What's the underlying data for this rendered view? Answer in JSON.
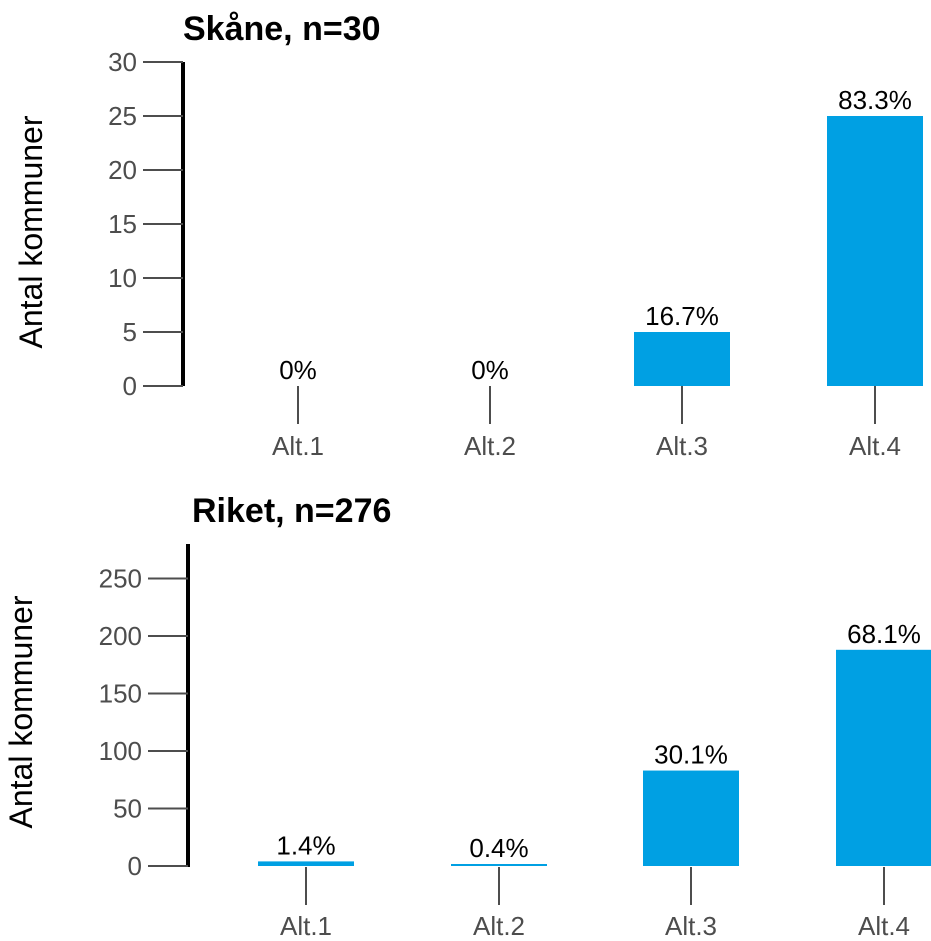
{
  "chart_data": [
    {
      "type": "bar",
      "title": "Skåne, n=30",
      "ylabel": "Antal kommuner",
      "xlabel": "",
      "categories": [
        "Alt.1",
        "Alt.2",
        "Alt.3",
        "Alt.4"
      ],
      "values": [
        0,
        0,
        5,
        25
      ],
      "data_labels": [
        "0%",
        "0%",
        "16.7%",
        "83.3%"
      ],
      "ylim": [
        0,
        30
      ],
      "yticks": [
        0,
        5,
        10,
        15,
        20,
        25,
        30
      ],
      "grid": false,
      "bar_color": "#00a0e3"
    },
    {
      "type": "bar",
      "title": "Riket, n=276",
      "ylabel": "Antal kommuner",
      "xlabel": "",
      "categories": [
        "Alt.1",
        "Alt.2",
        "Alt.3",
        "Alt.4"
      ],
      "values": [
        4,
        1,
        83,
        188
      ],
      "data_labels": [
        "1.4%",
        "0.4%",
        "30.1%",
        "68.1%"
      ],
      "ylim": [
        0,
        280
      ],
      "yticks": [
        0,
        50,
        100,
        150,
        200,
        250
      ],
      "grid": false,
      "bar_color": "#00a0e3"
    }
  ]
}
